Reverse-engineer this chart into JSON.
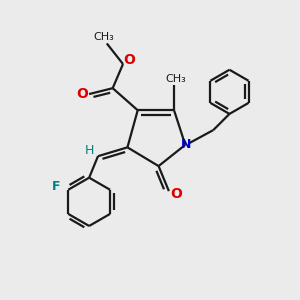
{
  "background_color": "#ebebeb",
  "bond_color": "#1a1a1a",
  "n_color": "#0000cc",
  "o_color": "#dd0000",
  "f_color": "#008080",
  "line_width": 1.6,
  "figsize": [
    3.0,
    3.0
  ],
  "dpi": 100,
  "xlim": [
    0,
    10
  ],
  "ylim": [
    0,
    10
  ]
}
